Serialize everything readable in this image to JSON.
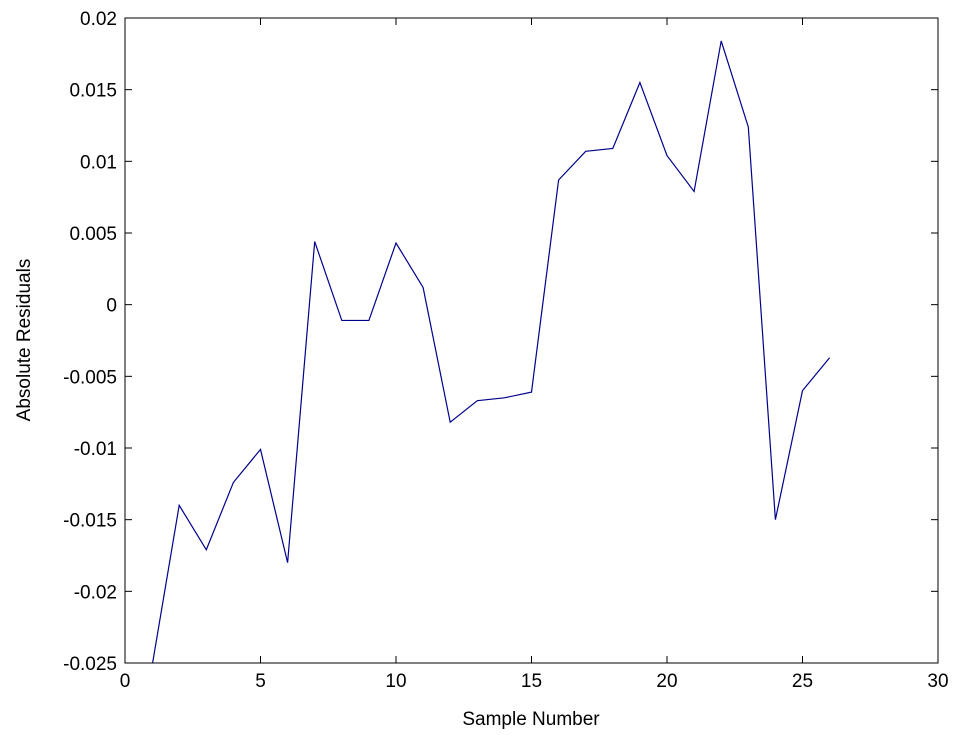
{
  "chart_data": {
    "type": "line",
    "title": "",
    "xlabel": "Sample Number",
    "ylabel": "Absolute Residuals",
    "xlim": [
      0,
      30
    ],
    "ylim": [
      -0.025,
      0.02
    ],
    "x_ticks": [
      0,
      5,
      10,
      15,
      20,
      25,
      30
    ],
    "x_tick_labels": [
      "0",
      "5",
      "10",
      "15",
      "20",
      "25",
      "30"
    ],
    "y_ticks": [
      -0.025,
      -0.02,
      -0.015,
      -0.01,
      -0.005,
      0,
      0.005,
      0.01,
      0.015,
      0.02
    ],
    "y_tick_labels": [
      "-0.025",
      "-0.02",
      "-0.015",
      "-0.01",
      "-0.005",
      "0",
      "0.005",
      "0.01",
      "0.015",
      "0.02"
    ],
    "grid": false,
    "legend": "none",
    "series": [
      {
        "color": "#00008b",
        "x": [
          1,
          2,
          3,
          4,
          5,
          6,
          7,
          8,
          9,
          10,
          11,
          12,
          13,
          14,
          15,
          16,
          17,
          18,
          19,
          20,
          21,
          22,
          23,
          24,
          25,
          26
        ],
        "values": [
          -0.0252,
          -0.014,
          -0.0171,
          -0.0124,
          -0.0101,
          -0.018,
          0.0044,
          -0.0011,
          -0.0011,
          0.0043,
          0.0012,
          -0.0082,
          -0.0067,
          -0.0065,
          -0.0061,
          0.0087,
          0.0107,
          0.0109,
          0.0155,
          0.0104,
          0.0079,
          0.0184,
          0.0124,
          -0.015,
          -0.006,
          -0.0037
        ]
      }
    ]
  }
}
